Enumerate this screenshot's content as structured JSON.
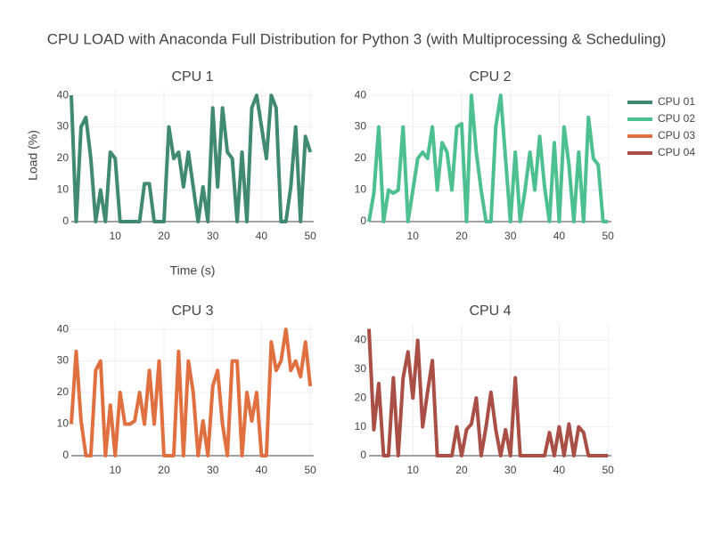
{
  "title": "CPU LOAD with Anaconda Full Distribution for Python 3 (with Multiprocessing & Scheduling)",
  "chart_data": [
    {
      "type": "line",
      "title": "CPU 1",
      "xlabel": "Time (s)",
      "ylabel": "Load (%)",
      "x": [
        1,
        2,
        3,
        4,
        5,
        6,
        7,
        8,
        9,
        10,
        11,
        12,
        13,
        14,
        15,
        16,
        17,
        18,
        19,
        20,
        21,
        22,
        23,
        24,
        25,
        26,
        27,
        28,
        29,
        30,
        31,
        32,
        33,
        34,
        35,
        36,
        37,
        38,
        39,
        40,
        41,
        42,
        43,
        44,
        45,
        46,
        47,
        48,
        49,
        50
      ],
      "series": [
        {
          "name": "CPU 01",
          "color": "#3f8a70",
          "values": [
            40,
            0,
            30,
            33,
            20,
            0,
            10,
            0,
            22,
            20,
            0,
            0,
            0,
            0,
            0,
            12,
            12,
            0,
            0,
            0,
            30,
            20,
            22,
            11,
            22,
            11,
            0,
            11,
            0,
            36,
            11,
            36,
            22,
            20,
            0,
            22,
            0,
            36,
            40,
            30,
            20,
            40,
            36,
            0,
            0,
            11,
            30,
            0,
            27,
            22
          ]
        }
      ],
      "xlim": [
        1,
        50.7
      ],
      "ylim": [
        0,
        42
      ],
      "xticks": [
        10,
        20,
        30,
        40,
        50
      ],
      "yticks": [
        0,
        10,
        20,
        30,
        40
      ],
      "grid": true
    },
    {
      "type": "line",
      "title": "CPU 2",
      "x": [
        1,
        2,
        3,
        4,
        5,
        6,
        7,
        8,
        9,
        10,
        11,
        12,
        13,
        14,
        15,
        16,
        17,
        18,
        19,
        20,
        21,
        22,
        23,
        24,
        25,
        26,
        27,
        28,
        29,
        30,
        31,
        32,
        33,
        34,
        35,
        36,
        37,
        38,
        39,
        40,
        41,
        42,
        43,
        44,
        45,
        46,
        47,
        48,
        49,
        50
      ],
      "series": [
        {
          "name": "CPU 02",
          "color": "#4cc090",
          "values": [
            0,
            9,
            30,
            0,
            10,
            9,
            10,
            30,
            0,
            10,
            20,
            22,
            20,
            30,
            10,
            25,
            22,
            10,
            30,
            31,
            0,
            40,
            22,
            10,
            0,
            0,
            30,
            40,
            20,
            0,
            22,
            0,
            10,
            22,
            10,
            27,
            11,
            0,
            25,
            0,
            30,
            18,
            0,
            22,
            0,
            33,
            20,
            18,
            0,
            0
          ]
        }
      ],
      "xlim": [
        1,
        50.7
      ],
      "ylim": [
        0,
        42
      ],
      "xticks": [
        10,
        20,
        30,
        40,
        50
      ],
      "yticks": [
        0,
        10,
        20,
        30,
        40
      ],
      "grid": true
    },
    {
      "type": "line",
      "title": "CPU 3",
      "x": [
        1,
        2,
        3,
        4,
        5,
        6,
        7,
        8,
        9,
        10,
        11,
        12,
        13,
        14,
        15,
        16,
        17,
        18,
        19,
        20,
        21,
        22,
        23,
        24,
        25,
        26,
        27,
        28,
        29,
        30,
        31,
        32,
        33,
        34,
        35,
        36,
        37,
        38,
        39,
        40,
        41,
        42,
        43,
        44,
        45,
        46,
        47,
        48,
        49,
        50
      ],
      "series": [
        {
          "name": "CPU 03",
          "color": "#e0703f",
          "values": [
            10,
            33,
            11,
            0,
            0,
            27,
            30,
            0,
            16,
            0,
            20,
            10,
            10,
            11,
            20,
            10,
            27,
            10,
            30,
            0,
            0,
            0,
            33,
            0,
            30,
            20,
            0,
            11,
            0,
            22,
            27,
            10,
            0,
            30,
            30,
            0,
            20,
            11,
            20,
            0,
            0,
            36,
            27,
            30,
            40,
            27,
            30,
            25,
            36,
            22
          ]
        }
      ],
      "xlim": [
        1,
        50.7
      ],
      "ylim": [
        0,
        42
      ],
      "xticks": [
        10,
        20,
        30,
        40,
        50
      ],
      "yticks": [
        0,
        10,
        20,
        30,
        40
      ],
      "grid": true
    },
    {
      "type": "line",
      "title": "CPU 4",
      "x": [
        1,
        2,
        3,
        4,
        5,
        6,
        7,
        8,
        9,
        10,
        11,
        12,
        13,
        14,
        15,
        16,
        17,
        18,
        19,
        20,
        21,
        22,
        23,
        24,
        25,
        26,
        27,
        28,
        29,
        30,
        31,
        32,
        33,
        34,
        35,
        36,
        37,
        38,
        39,
        40,
        41,
        42,
        43,
        44,
        45,
        46,
        47,
        48,
        49,
        50
      ],
      "series": [
        {
          "name": "CPU 04",
          "color": "#a94f45",
          "values": [
            44,
            9,
            25,
            0,
            0,
            27,
            0,
            27,
            36,
            20,
            40,
            10,
            22,
            33,
            0,
            0,
            0,
            0,
            10,
            0,
            9,
            11,
            20,
            0,
            10,
            22,
            9,
            0,
            9,
            0,
            27,
            0,
            0,
            0,
            0,
            0,
            0,
            8,
            0,
            10,
            0,
            11,
            0,
            10,
            8,
            0,
            0,
            0,
            0,
            0
          ]
        }
      ],
      "xlim": [
        1,
        50.7
      ],
      "ylim": [
        0,
        46
      ],
      "xticks": [
        10,
        20,
        30,
        40,
        50
      ],
      "yticks": [
        0,
        10,
        20,
        30,
        40
      ],
      "grid": true
    }
  ]
}
